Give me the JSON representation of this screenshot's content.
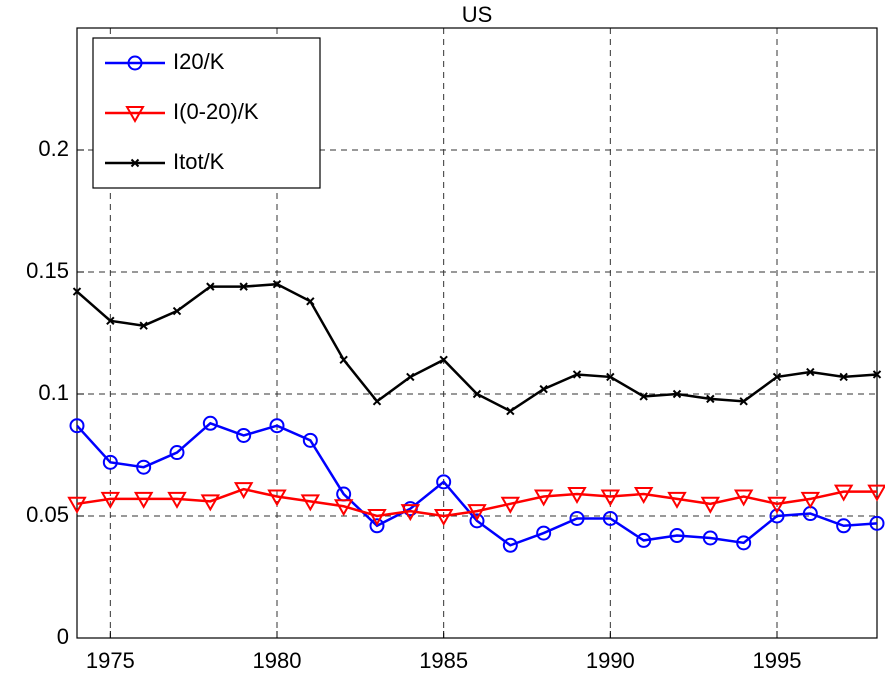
{
  "chart_data": {
    "type": "line",
    "title": "US",
    "x": [
      1974,
      1975,
      1976,
      1977,
      1978,
      1979,
      1980,
      1981,
      1982,
      1983,
      1984,
      1985,
      1986,
      1987,
      1988,
      1989,
      1990,
      1991,
      1992,
      1993,
      1994,
      1995,
      1996,
      1997,
      1998
    ],
    "series": [
      {
        "name": "I20/K",
        "color": "#0000ff",
        "marker": "o",
        "values": [
          0.087,
          0.072,
          0.07,
          0.076,
          0.088,
          0.083,
          0.087,
          0.081,
          0.059,
          0.046,
          0.053,
          0.064,
          0.048,
          0.038,
          0.043,
          0.049,
          0.049,
          0.04,
          0.042,
          0.041,
          0.039,
          0.05,
          0.051,
          0.046,
          0.047
        ]
      },
      {
        "name": "I(0-20)/K",
        "color": "#ff0000",
        "marker": "v",
        "values": [
          0.055,
          0.057,
          0.057,
          0.057,
          0.056,
          0.061,
          0.058,
          0.056,
          0.054,
          0.05,
          0.052,
          0.05,
          0.052,
          0.055,
          0.058,
          0.059,
          0.058,
          0.059,
          0.057,
          0.055,
          0.058,
          0.055,
          0.057,
          0.06,
          0.06
        ]
      },
      {
        "name": "Itot/K",
        "color": "#000000",
        "marker": "x",
        "values": [
          0.142,
          0.13,
          0.128,
          0.134,
          0.144,
          0.144,
          0.145,
          0.138,
          0.114,
          0.097,
          0.107,
          0.114,
          0.1,
          0.093,
          0.102,
          0.108,
          0.107,
          0.099,
          0.1,
          0.098,
          0.097,
          0.107,
          0.109,
          0.107,
          0.108
        ]
      }
    ],
    "xlim": [
      1974,
      1998
    ],
    "xticks": [
      1975,
      1980,
      1985,
      1990,
      1995
    ],
    "ylim": [
      0,
      0.25
    ],
    "yticks": [
      0,
      0.05,
      0.1,
      0.15,
      0.2
    ],
    "grid": true,
    "legend": "upper-left"
  }
}
